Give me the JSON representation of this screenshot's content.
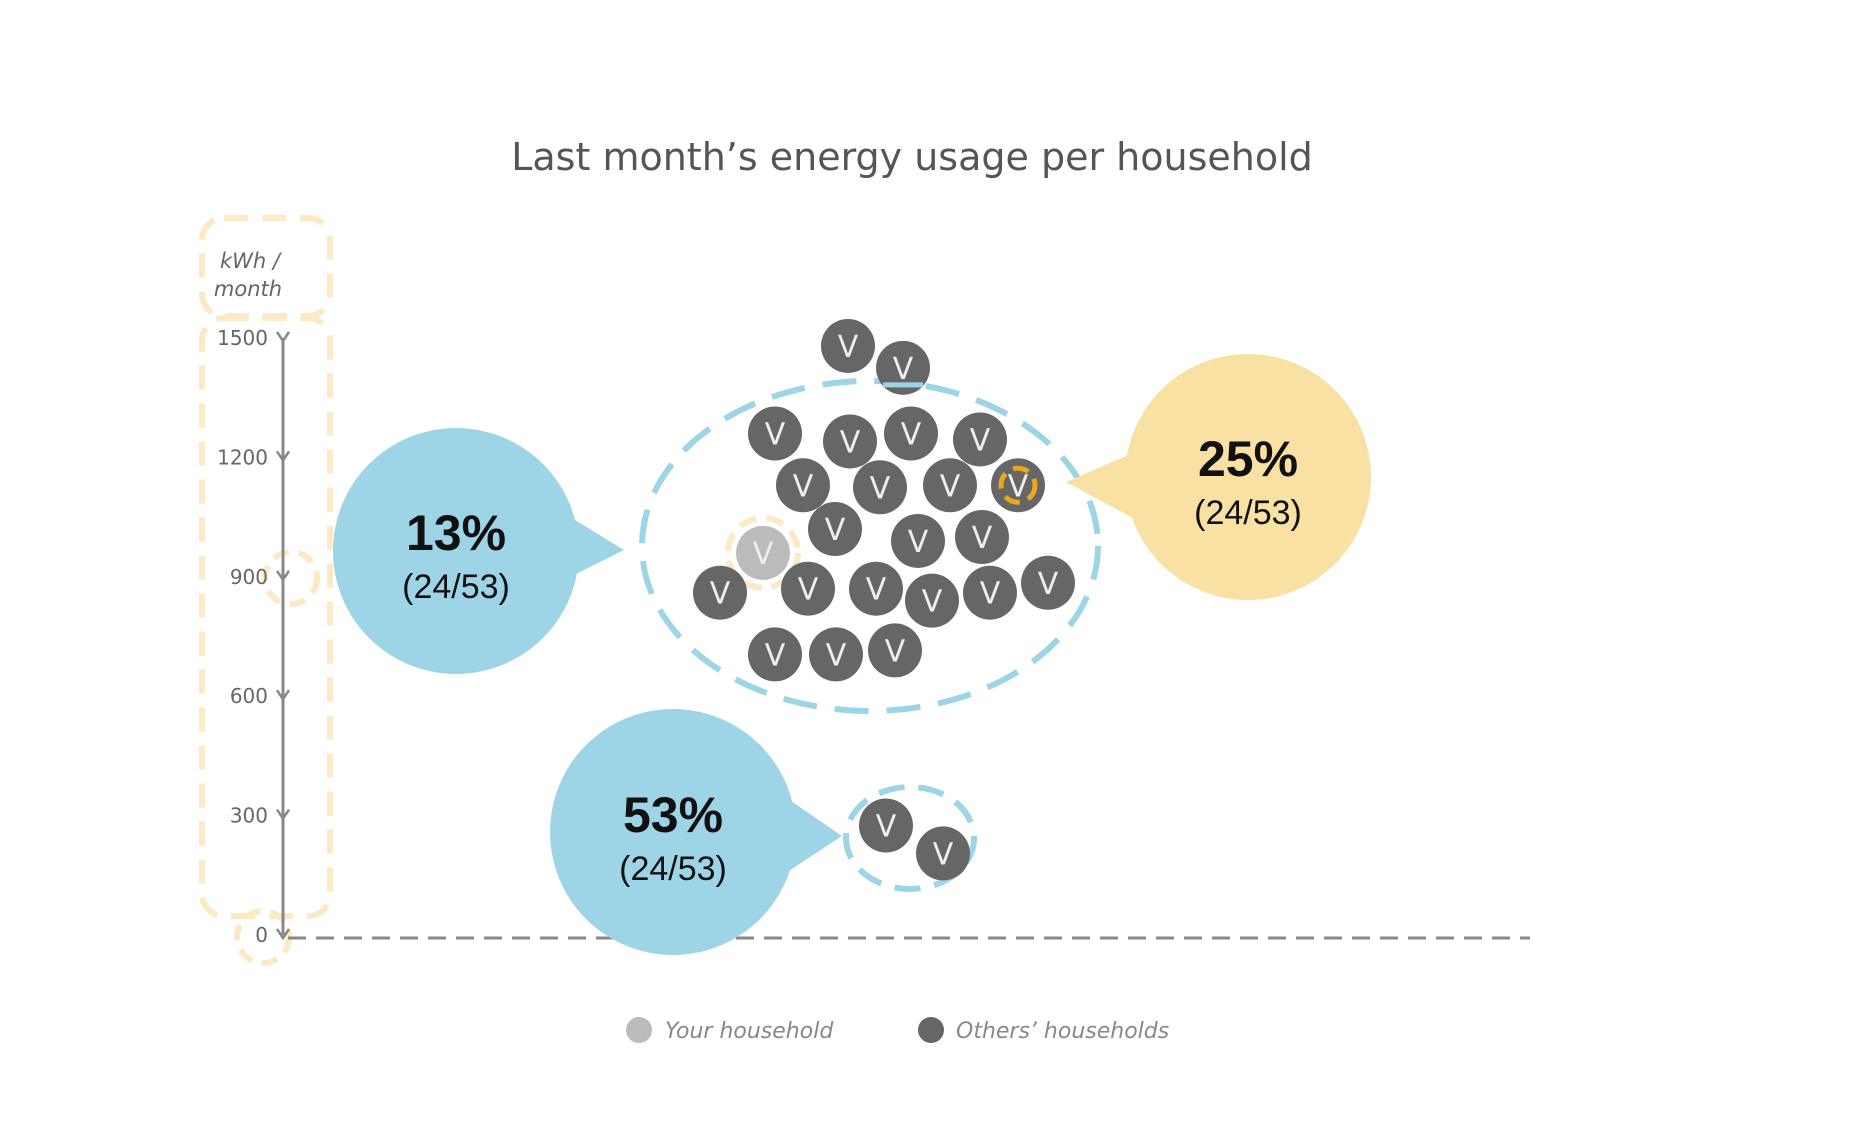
{
  "chart_data": {
    "type": "scatter",
    "title": "Last month’s energy usage per household",
    "y_unit_label": [
      "kWh /",
      "month"
    ],
    "ylim": [
      0,
      1500
    ],
    "y_ticks": [
      0,
      300,
      600,
      900,
      1200,
      1500
    ],
    "marker_glyph": "V",
    "legend": {
      "placement": "bottom",
      "items": [
        {
          "name": "Your household",
          "color": "#bbbbbb"
        },
        {
          "name": "Others’ households",
          "color": "#666666"
        }
      ]
    },
    "households": [
      {
        "group": "others",
        "y": 1480
      },
      {
        "group": "others",
        "y": 1425
      },
      {
        "group": "others",
        "y": 1260
      },
      {
        "group": "others",
        "y": 1240
      },
      {
        "group": "others",
        "y": 1260
      },
      {
        "group": "others",
        "y": 1245
      },
      {
        "group": "others",
        "y": 1130
      },
      {
        "group": "others",
        "y": 1125
      },
      {
        "group": "others",
        "y": 1130
      },
      {
        "group": "others",
        "y": 1130,
        "highlight": "selected"
      },
      {
        "group": "others",
        "y": 1020
      },
      {
        "group": "others",
        "y": 990
      },
      {
        "group": "others",
        "y": 1000
      },
      {
        "group": "yours",
        "y": 960
      },
      {
        "group": "others",
        "y": 860
      },
      {
        "group": "others",
        "y": 870
      },
      {
        "group": "others",
        "y": 870
      },
      {
        "group": "others",
        "y": 840
      },
      {
        "group": "others",
        "y": 860
      },
      {
        "group": "others",
        "y": 885
      },
      {
        "group": "others",
        "y": 705
      },
      {
        "group": "others",
        "y": 705
      },
      {
        "group": "others",
        "y": 715
      },
      {
        "group": "others",
        "y": 275
      },
      {
        "group": "others",
        "y": 205
      }
    ],
    "callouts": [
      {
        "percent": "13%",
        "fraction": "(24/53)",
        "color": "#9dd5e6",
        "target": "main-cluster"
      },
      {
        "percent": "25%",
        "fraction": "(24/53)",
        "color": "#f9e1a3",
        "target": "main-cluster"
      },
      {
        "percent": "53%",
        "fraction": "(24/53)",
        "color": "#9dd5e6",
        "target": "low-cluster"
      }
    ]
  },
  "colors": {
    "accent_blue": "#9dd5e6",
    "accent_yellow": "#f9e1a3",
    "highlight_orange": "#e9a81d",
    "axis": "#888888",
    "guide": "#fde9c4"
  }
}
